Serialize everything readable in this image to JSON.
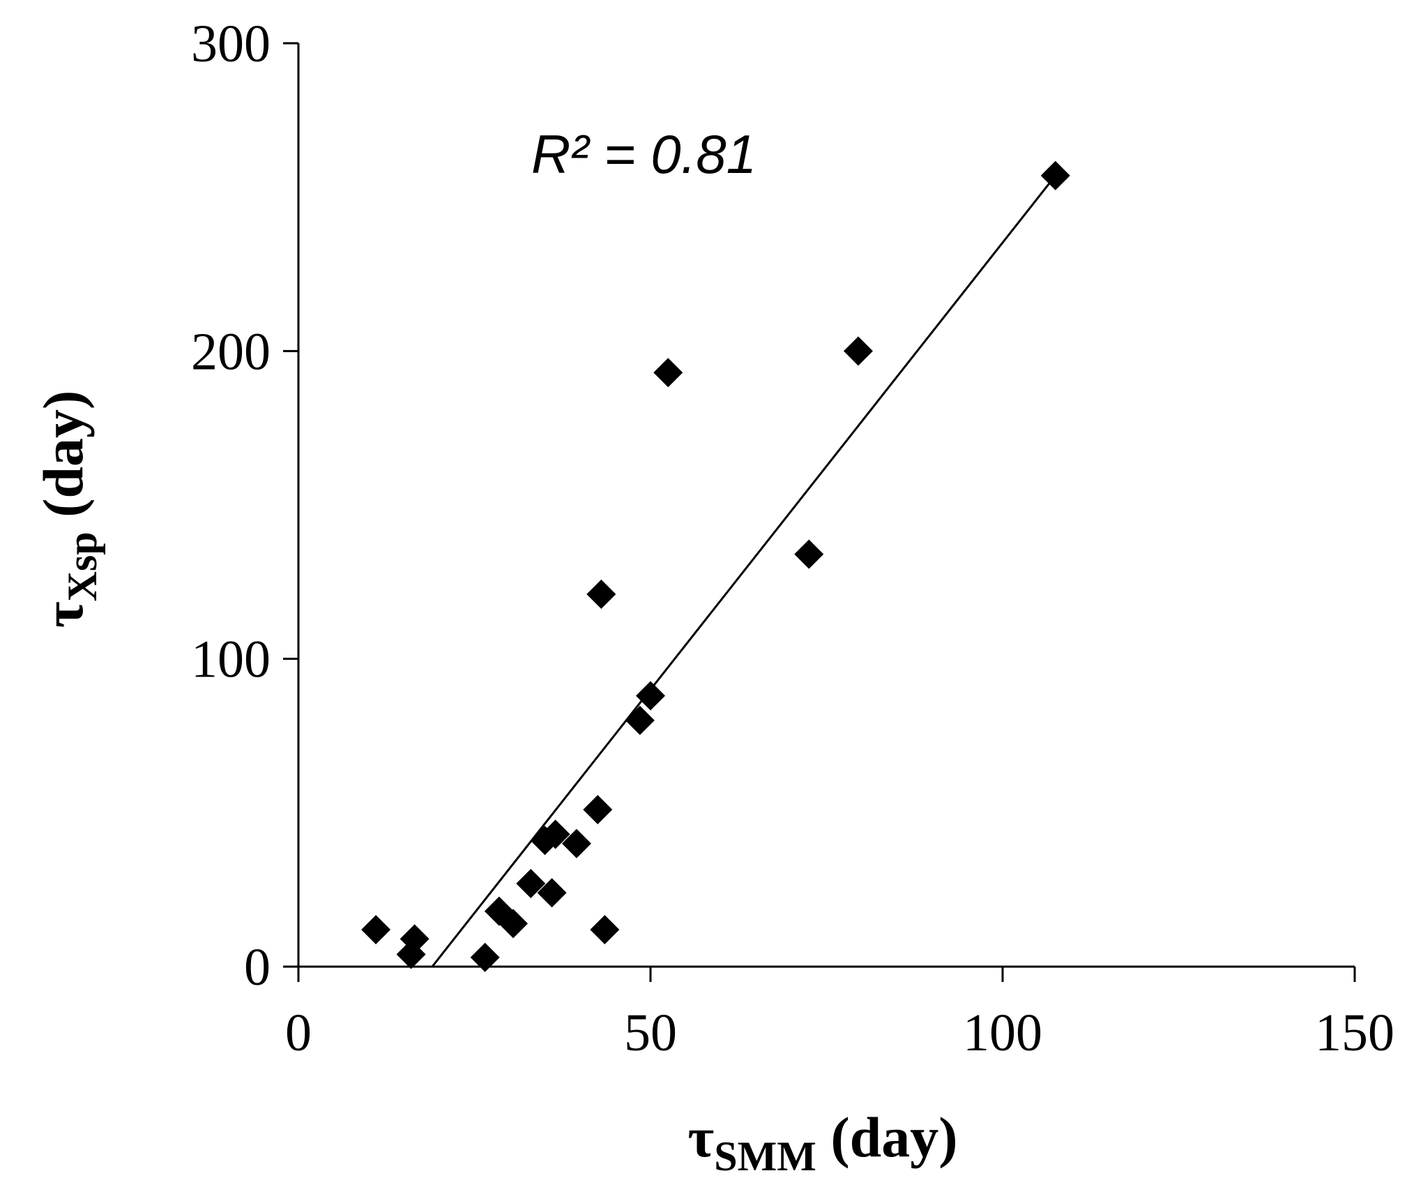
{
  "chart_data": {
    "type": "scatter",
    "xlabel": {
      "symbol": "τ",
      "subscript": "SMM",
      "unit": " (day)"
    },
    "ylabel": {
      "symbol": "τ",
      "subscript": "Xsp",
      "unit": " (day)"
    },
    "xlim": [
      0,
      150
    ],
    "ylim": [
      0,
      300
    ],
    "xticks": [
      "0",
      "50",
      "100",
      "150"
    ],
    "yticks": [
      "0",
      "100",
      "200",
      "300"
    ],
    "grid": false,
    "legend": "none",
    "marker": "diamond",
    "marker_color": "#000000",
    "annotation": "R² = 0.81",
    "points": [
      {
        "x": 11,
        "y": 12
      },
      {
        "x": 16,
        "y": 4
      },
      {
        "x": 16.5,
        "y": 9
      },
      {
        "x": 26.5,
        "y": 3
      },
      {
        "x": 28.5,
        "y": 18
      },
      {
        "x": 30.5,
        "y": 14
      },
      {
        "x": 33,
        "y": 27
      },
      {
        "x": 35,
        "y": 41
      },
      {
        "x": 36,
        "y": 24
      },
      {
        "x": 36.5,
        "y": 43
      },
      {
        "x": 39.5,
        "y": 40
      },
      {
        "x": 42.5,
        "y": 51
      },
      {
        "x": 43,
        "y": 121
      },
      {
        "x": 43.5,
        "y": 12
      },
      {
        "x": 48.5,
        "y": 80
      },
      {
        "x": 50,
        "y": 88
      },
      {
        "x": 52.5,
        "y": 193
      },
      {
        "x": 72.5,
        "y": 134
      },
      {
        "x": 79.5,
        "y": 200
      },
      {
        "x": 107.5,
        "y": 257
      }
    ],
    "trendline": {
      "x": [
        19,
        107.5
      ],
      "y": [
        0,
        257
      ]
    }
  }
}
